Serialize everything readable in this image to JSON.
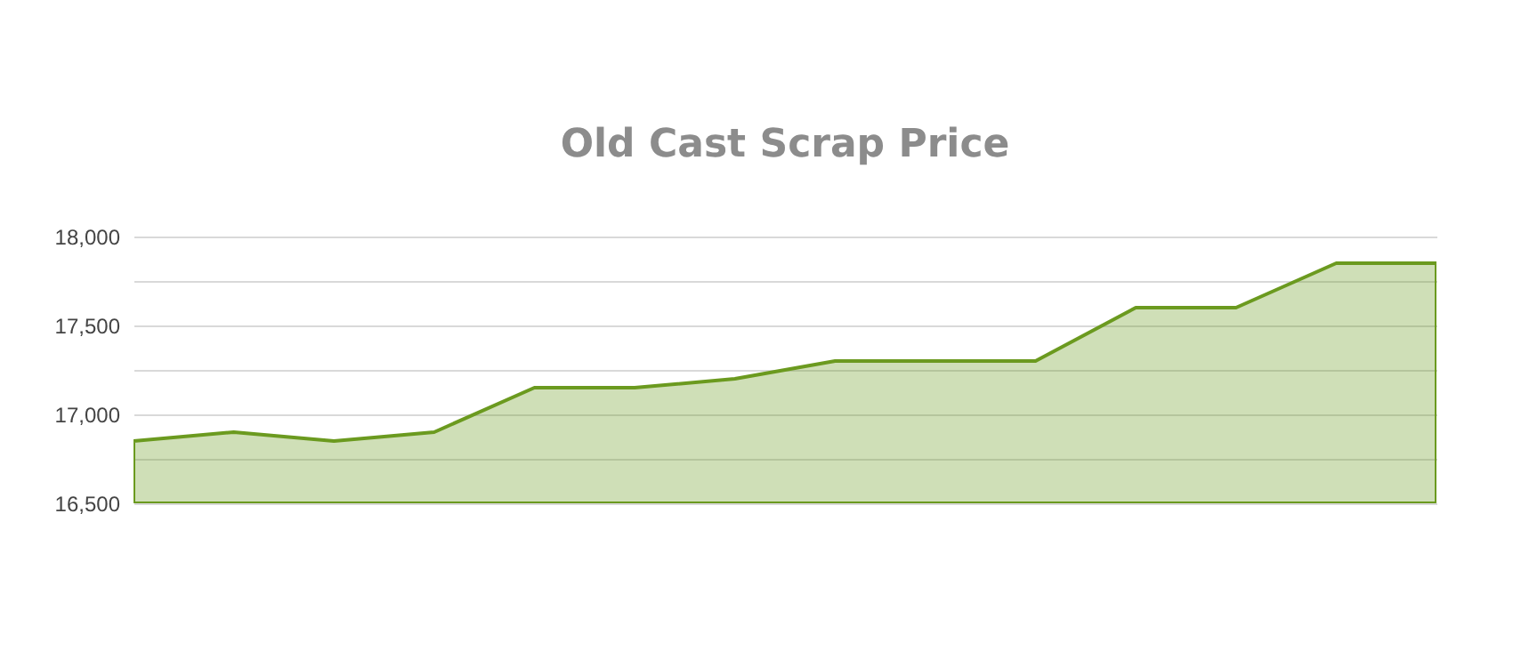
{
  "chart_data": {
    "type": "area",
    "title": "Old Cast Scrap Price",
    "categories": [
      null,
      null,
      null,
      null,
      null,
      null,
      null,
      null,
      null,
      null,
      null,
      null,
      null,
      null
    ],
    "series": [
      {
        "color": "#6b9a1f",
        "values": [
          16850,
          16900,
          16850,
          16900,
          17150,
          17150,
          17200,
          17300,
          17300,
          17300,
          17600,
          17600,
          17850,
          17850
        ]
      }
    ],
    "ylim": [
      16500,
      18000
    ],
    "yticks": [
      {
        "value": 16500,
        "label": "16,500"
      },
      {
        "value": 16750,
        "label": null
      },
      {
        "value": 17000,
        "label": "17,000"
      },
      {
        "value": 17250,
        "label": null
      },
      {
        "value": 17500,
        "label": "17,500"
      },
      {
        "value": 17750,
        "label": null
      },
      {
        "value": 18000,
        "label": "18,000"
      }
    ],
    "grid": "y"
  }
}
